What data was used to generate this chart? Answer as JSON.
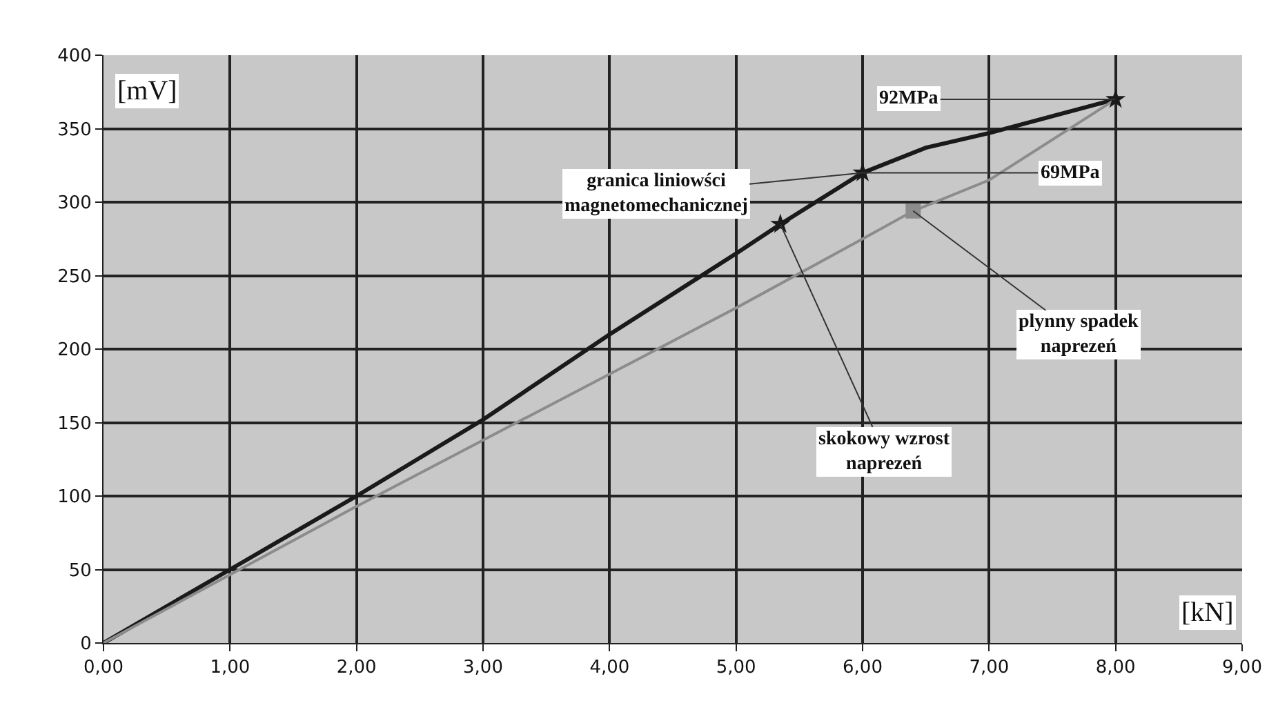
{
  "chart_data": {
    "type": "line",
    "xlabel": "[kN]",
    "ylabel": "[mV]",
    "series": [
      {
        "color": "#1a1a1a",
        "x": [
          0,
          1,
          2,
          3,
          4,
          5,
          5.35,
          6,
          6.5,
          7,
          8
        ],
        "values": [
          0,
          50,
          100,
          152,
          210,
          265,
          285,
          320,
          337,
          347,
          370
        ]
      },
      {
        "color": "#8c8c8c",
        "x": [
          0,
          2,
          3,
          4,
          5,
          6,
          6.4,
          7,
          8
        ],
        "values": [
          0,
          93,
          138,
          183,
          228,
          275,
          294,
          315,
          370
        ]
      },
      {
        "type": "scatter",
        "marker": "star",
        "color": "#1a1a1a",
        "x": [
          5.35,
          6,
          8
        ],
        "values": [
          285,
          320,
          370
        ]
      },
      {
        "type": "scatter",
        "marker": "square",
        "color": "#8c8c8c",
        "x": [
          6.4
        ],
        "values": [
          294
        ]
      }
    ],
    "xlim": [
      0,
      9
    ],
    "xticks": [
      {
        "value": 0,
        "label": "0,00"
      },
      {
        "value": 1,
        "label": "1,00"
      },
      {
        "value": 2,
        "label": "2,00"
      },
      {
        "value": 3,
        "label": "3,00"
      },
      {
        "value": 4,
        "label": "4,00"
      },
      {
        "value": 5,
        "label": "5,00"
      },
      {
        "value": 6,
        "label": "6,00"
      },
      {
        "value": 7,
        "label": "7,00"
      },
      {
        "value": 8,
        "label": "8,00"
      },
      {
        "value": 9,
        "label": "9,00"
      }
    ],
    "ylim": [
      0,
      400
    ],
    "yticks": [
      0,
      50,
      100,
      150,
      200,
      250,
      300,
      350,
      400
    ],
    "grid": true,
    "annotations": [
      {
        "text": "92MPa",
        "x": 8,
        "y": 370
      },
      {
        "text": "granica liniowści\nmagnetomechanicznej",
        "x": 6,
        "y": 320
      },
      {
        "text": "69MPa",
        "x": 6,
        "y": 320
      },
      {
        "text": "plynny spadek\nnaprezeń",
        "x": 6.4,
        "y": 294
      },
      {
        "text": "skokowy wzrost\nnaprezeń",
        "x": 5.35,
        "y": 285
      }
    ]
  }
}
